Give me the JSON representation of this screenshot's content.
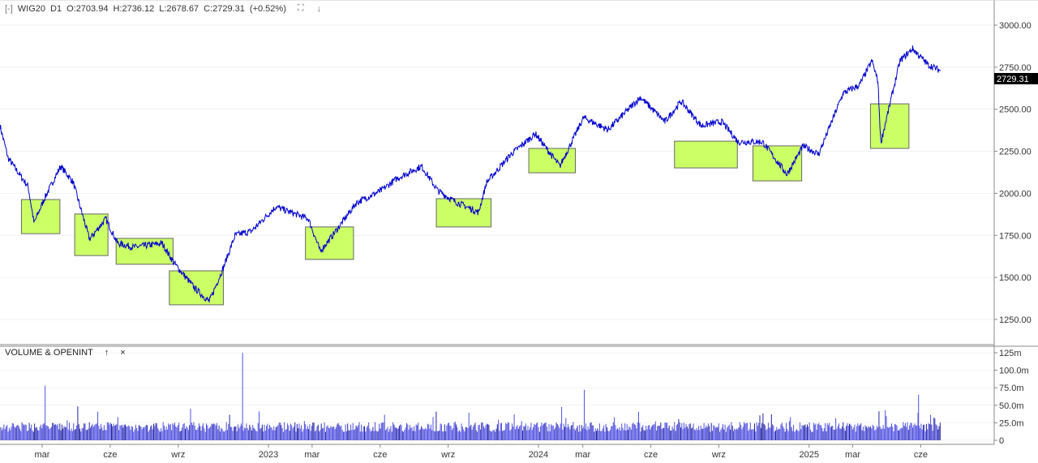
{
  "header": {
    "collapse_icon": "[-]",
    "symbol": "WIG20",
    "interval": "D1",
    "open": "O:2703.94",
    "high": "H:2736.12",
    "low": "L:2678.67",
    "close": "C:2729.31",
    "change": "(+0.52%)",
    "fullscreen_icon": "expand-icon",
    "download_icon": "arrow-down-icon"
  },
  "volume_panel": {
    "title": "VOLUME & OPENINT",
    "up_icon": "↑",
    "close_icon": "×"
  },
  "last_price_label": "2729.31",
  "colors": {
    "price_line": "#0000cc",
    "highlight": "#ccff66",
    "volume": "#5050e0",
    "last_price_bg": "#000000"
  },
  "chart_data": {
    "type": "line",
    "price_axis": {
      "ticks": [
        "3000.00",
        "2750.00",
        "2500.00",
        "2250.00",
        "2000.00",
        "1750.00",
        "1500.00",
        "1250.00"
      ],
      "range": [
        1150,
        3050
      ]
    },
    "volume_axis": {
      "ticks": [
        "125m",
        "100.0m",
        "75.0m",
        "50.0m",
        "25.0m",
        "0"
      ],
      "range": [
        0,
        125
      ]
    },
    "x_ticks": [
      {
        "label": "mar",
        "date": "2022-03-01"
      },
      {
        "label": "cze",
        "date": "2022-06-01"
      },
      {
        "label": "wrz",
        "date": "2022-09-01"
      },
      {
        "label": "2023",
        "date": "2023-01-01"
      },
      {
        "label": "mar",
        "date": "2023-03-01"
      },
      {
        "label": "cze",
        "date": "2023-06-01"
      },
      {
        "label": "wrz",
        "date": "2023-09-01"
      },
      {
        "label": "2024",
        "date": "2024-01-01"
      },
      {
        "label": "mar",
        "date": "2024-03-01"
      },
      {
        "label": "cze",
        "date": "2024-06-01"
      },
      {
        "label": "wrz",
        "date": "2024-09-01"
      },
      {
        "label": "2025",
        "date": "2025-01-01"
      },
      {
        "label": "mar",
        "date": "2025-03-01"
      },
      {
        "label": "cze",
        "date": "2025-06-01"
      }
    ],
    "price_points": [
      [
        "2022-01-03",
        2402
      ],
      [
        "2022-01-14",
        2209
      ],
      [
        "2022-02-10",
        2040
      ],
      [
        "2022-02-18",
        1824
      ],
      [
        "2022-03-04",
        1968
      ],
      [
        "2022-03-26",
        2161
      ],
      [
        "2022-04-12",
        2065
      ],
      [
        "2022-05-04",
        1727
      ],
      [
        "2022-05-26",
        1848
      ],
      [
        "2022-06-11",
        1703
      ],
      [
        "2022-07-03",
        1679
      ],
      [
        "2022-08-10",
        1703
      ],
      [
        "2022-08-27",
        1582
      ],
      [
        "2022-09-23",
        1437
      ],
      [
        "2022-10-13",
        1356
      ],
      [
        "2022-11-01",
        1558
      ],
      [
        "2022-11-17",
        1751
      ],
      [
        "2022-12-09",
        1775
      ],
      [
        "2023-01-11",
        1920
      ],
      [
        "2023-02-24",
        1848
      ],
      [
        "2023-03-12",
        1655
      ],
      [
        "2023-03-29",
        1751
      ],
      [
        "2023-04-30",
        1944
      ],
      [
        "2023-06-02",
        2016
      ],
      [
        "2023-06-24",
        2089
      ],
      [
        "2023-07-27",
        2161
      ],
      [
        "2023-08-18",
        2016
      ],
      [
        "2023-09-09",
        1954
      ],
      [
        "2023-10-12",
        1887
      ],
      [
        "2023-10-23",
        2065
      ],
      [
        "2023-11-25",
        2233
      ],
      [
        "2023-12-28",
        2354
      ],
      [
        "2024-01-30",
        2161
      ],
      [
        "2024-03-02",
        2450
      ],
      [
        "2024-04-04",
        2378
      ],
      [
        "2024-05-18",
        2571
      ],
      [
        "2024-06-20",
        2426
      ],
      [
        "2024-07-12",
        2547
      ],
      [
        "2024-08-08",
        2402
      ],
      [
        "2024-09-05",
        2426
      ],
      [
        "2024-09-27",
        2306
      ],
      [
        "2024-10-30",
        2306
      ],
      [
        "2024-12-02",
        2113
      ],
      [
        "2024-12-24",
        2281
      ],
      [
        "2025-01-14",
        2233
      ],
      [
        "2025-02-16",
        2595
      ],
      [
        "2025-03-10",
        2643
      ],
      [
        "2025-03-27",
        2788
      ],
      [
        "2025-04-04",
        2667
      ],
      [
        "2025-04-08",
        2300
      ],
      [
        "2025-05-04",
        2788
      ],
      [
        "2025-05-21",
        2860
      ],
      [
        "2025-06-11",
        2764
      ],
      [
        "2025-06-28",
        2729
      ]
    ],
    "highlights": [
      [
        "2022-02-01",
        "2022-03-25",
        1760,
        1963
      ],
      [
        "2022-04-14",
        "2022-05-29",
        1630,
        1877
      ],
      [
        "2022-06-09",
        "2022-08-25",
        1578,
        1732
      ],
      [
        "2022-08-20",
        "2022-11-01",
        1337,
        1539
      ],
      [
        "2023-02-20",
        "2023-04-26",
        1607,
        1800
      ],
      [
        "2023-08-16",
        "2023-10-29",
        1800,
        1968
      ],
      [
        "2023-12-19",
        "2024-02-20",
        2122,
        2267
      ],
      [
        "2024-07-03",
        "2024-09-26",
        2151,
        2310
      ],
      [
        "2024-10-17",
        "2024-12-22",
        2074,
        2282
      ],
      [
        "2025-03-25",
        "2025-05-16",
        2267,
        2532
      ]
    ],
    "volume_spikes_m": [
      [
        "2022-11-27",
        125
      ],
      [
        "2022-03-05",
        78
      ],
      [
        "2024-03-03",
        72
      ],
      [
        "2025-05-29",
        65
      ]
    ]
  }
}
